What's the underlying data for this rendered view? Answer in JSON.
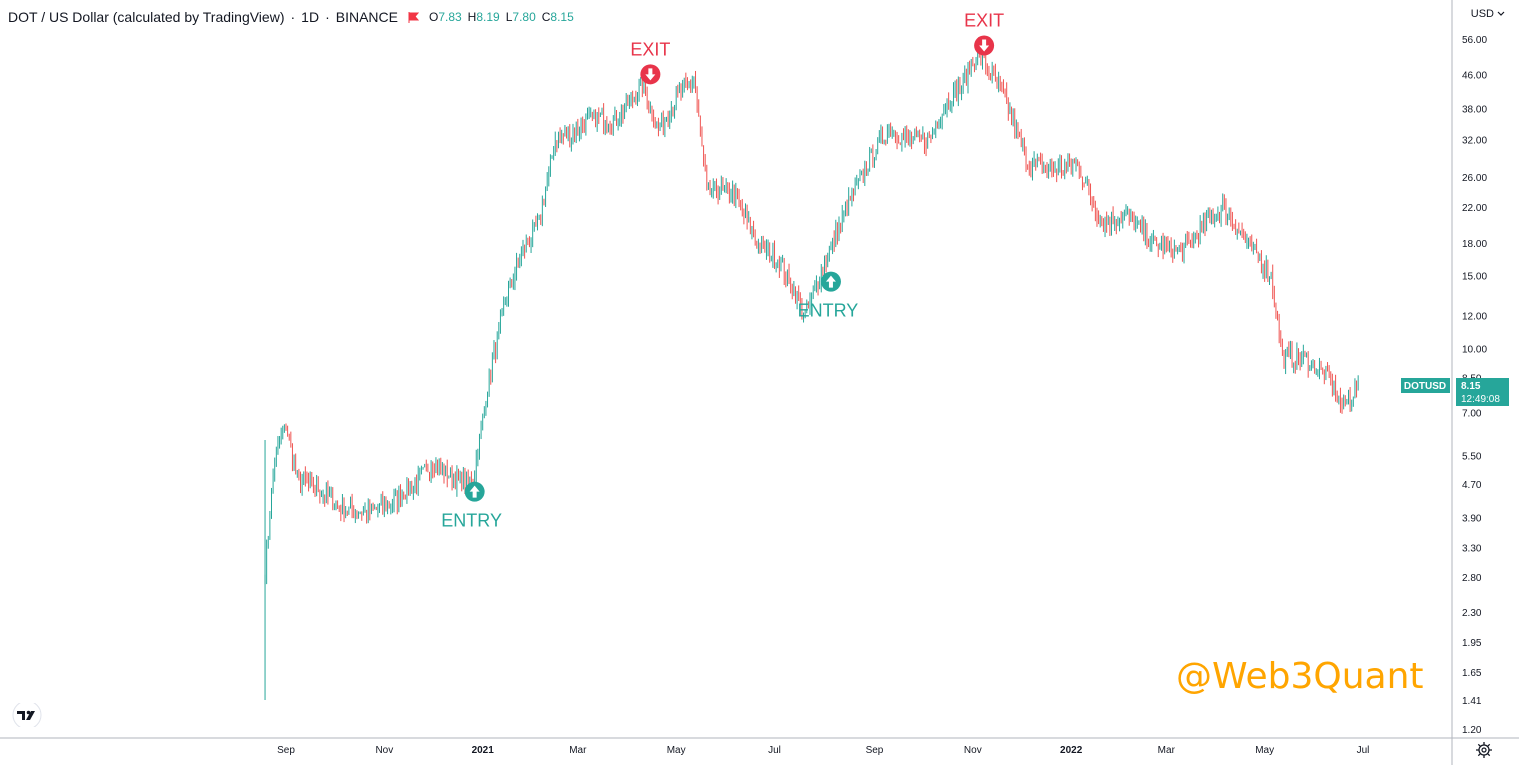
{
  "header": {
    "symbol": "DOT / US Dollar (calculated by TradingView)",
    "interval": "1D",
    "exchange": "BINANCE",
    "open_label": "O",
    "open": "7.83",
    "high_label": "H",
    "high": "8.19",
    "low_label": "L",
    "low": "7.80",
    "close_label": "C",
    "close": "8.15"
  },
  "currency_selector": "USD",
  "watermark": "@Web3Quant",
  "price_tag": {
    "ticker": "DOTUSD",
    "price": "8.15",
    "countdown": "12:49:08"
  },
  "colors": {
    "up": "#26a69a",
    "down": "#ef5350",
    "exit": "#e8344a",
    "entry": "#26a69a",
    "watermark": "#ffa500",
    "tag": "#26a69a"
  },
  "chart_data": {
    "type": "candlestick",
    "y_scale": "log",
    "y_ticks": [
      "56.00",
      "46.00",
      "38.00",
      "32.00",
      "26.00",
      "22.00",
      "18.00",
      "15.00",
      "12.00",
      "10.00",
      "8.50",
      "7.00",
      "5.50",
      "4.70",
      "3.90",
      "3.30",
      "2.80",
      "2.30",
      "1.95",
      "1.65",
      "1.41",
      "1.20"
    ],
    "x_ticks": [
      "Sep",
      "Nov",
      "2021",
      "Mar",
      "May",
      "Jul",
      "Sep",
      "Nov",
      "2022",
      "Mar",
      "May",
      "Jul"
    ],
    "series_anchor_points": [
      {
        "date": "2020-08-19",
        "price": 2.9
      },
      {
        "date": "2020-08-25",
        "price": 5.5
      },
      {
        "date": "2020-09-01",
        "price": 6.5
      },
      {
        "date": "2020-09-08",
        "price": 4.8
      },
      {
        "date": "2020-09-20",
        "price": 4.6
      },
      {
        "date": "2020-10-05",
        "price": 4.1
      },
      {
        "date": "2020-10-20",
        "price": 4.0
      },
      {
        "date": "2020-11-05",
        "price": 4.2
      },
      {
        "date": "2020-11-20",
        "price": 4.7
      },
      {
        "date": "2020-12-01",
        "price": 5.3
      },
      {
        "date": "2020-12-15",
        "price": 4.8
      },
      {
        "date": "2020-12-26",
        "price": 4.8
      },
      {
        "date": "2021-01-05",
        "price": 8.5
      },
      {
        "date": "2021-01-15",
        "price": 13
      },
      {
        "date": "2021-01-25",
        "price": 17
      },
      {
        "date": "2021-02-05",
        "price": 20
      },
      {
        "date": "2021-02-15",
        "price": 32
      },
      {
        "date": "2021-02-25",
        "price": 33
      },
      {
        "date": "2021-03-10",
        "price": 36
      },
      {
        "date": "2021-03-25",
        "price": 36
      },
      {
        "date": "2021-04-10",
        "price": 43
      },
      {
        "date": "2021-04-20",
        "price": 34
      },
      {
        "date": "2021-05-01",
        "price": 40
      },
      {
        "date": "2021-05-12",
        "price": 45
      },
      {
        "date": "2021-05-20",
        "price": 24
      },
      {
        "date": "2021-06-05",
        "price": 24
      },
      {
        "date": "2021-06-20",
        "price": 18
      },
      {
        "date": "2021-07-05",
        "price": 16
      },
      {
        "date": "2021-07-20",
        "price": 12
      },
      {
        "date": "2021-08-01",
        "price": 16
      },
      {
        "date": "2021-08-15",
        "price": 22
      },
      {
        "date": "2021-09-01",
        "price": 30
      },
      {
        "date": "2021-09-10",
        "price": 34
      },
      {
        "date": "2021-09-20",
        "price": 32
      },
      {
        "date": "2021-10-05",
        "price": 32
      },
      {
        "date": "2021-10-15",
        "price": 39
      },
      {
        "date": "2021-10-25",
        "price": 43
      },
      {
        "date": "2021-11-04",
        "price": 52
      },
      {
        "date": "2021-11-20",
        "price": 41
      },
      {
        "date": "2021-12-05",
        "price": 28
      },
      {
        "date": "2021-12-20",
        "price": 27
      },
      {
        "date": "2022-01-05",
        "price": 28
      },
      {
        "date": "2022-01-20",
        "price": 20
      },
      {
        "date": "2022-02-05",
        "price": 21
      },
      {
        "date": "2022-02-20",
        "price": 18
      },
      {
        "date": "2022-03-10",
        "price": 17
      },
      {
        "date": "2022-03-25",
        "price": 20
      },
      {
        "date": "2022-04-05",
        "price": 22
      },
      {
        "date": "2022-04-20",
        "price": 18
      },
      {
        "date": "2022-05-05",
        "price": 15
      },
      {
        "date": "2022-05-12",
        "price": 9.5
      },
      {
        "date": "2022-05-25",
        "price": 9.5
      },
      {
        "date": "2022-06-10",
        "price": 8.5
      },
      {
        "date": "2022-06-18",
        "price": 7.2
      },
      {
        "date": "2022-06-28",
        "price": 8.15
      }
    ],
    "signals": [
      {
        "type": "entry",
        "label": "ENTRY",
        "date": "2020-12-27",
        "price": 4.5
      },
      {
        "type": "exit",
        "label": "EXIT",
        "date": "2021-04-15",
        "price": 46
      },
      {
        "type": "entry",
        "label": "ENTRY",
        "date": "2021-08-05",
        "price": 14.5
      },
      {
        "type": "exit",
        "label": "EXIT",
        "date": "2021-11-08",
        "price": 54
      }
    ]
  }
}
